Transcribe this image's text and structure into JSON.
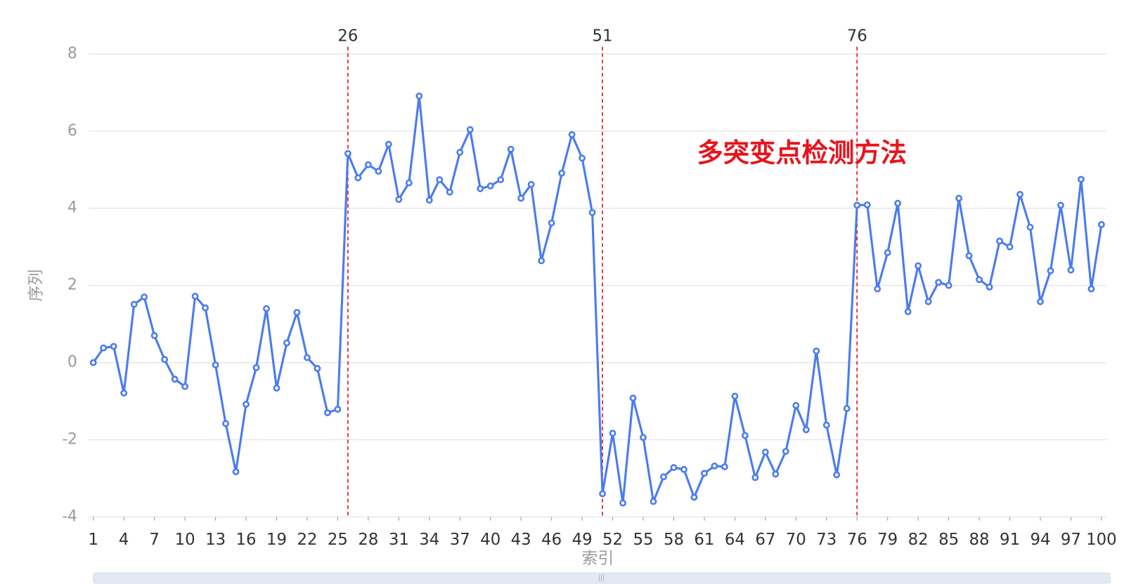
{
  "chart_data": {
    "type": "line",
    "title": "多突变点检测方法",
    "x_label": "索引",
    "y_label": "序列",
    "x": [
      1,
      2,
      3,
      4,
      5,
      6,
      7,
      8,
      9,
      10,
      11,
      12,
      13,
      14,
      15,
      16,
      17,
      18,
      19,
      20,
      21,
      22,
      23,
      24,
      25,
      26,
      27,
      28,
      29,
      30,
      31,
      32,
      33,
      34,
      35,
      36,
      37,
      38,
      39,
      40,
      41,
      42,
      43,
      44,
      45,
      46,
      47,
      48,
      49,
      50,
      51,
      52,
      53,
      54,
      55,
      56,
      57,
      58,
      59,
      60,
      61,
      62,
      63,
      64,
      65,
      66,
      67,
      68,
      69,
      70,
      71,
      72,
      73,
      74,
      75,
      76,
      77,
      78,
      79,
      80,
      81,
      82,
      83,
      84,
      85,
      86,
      87,
      88,
      89,
      90,
      91,
      92,
      93,
      94,
      95,
      96,
      97,
      98,
      99,
      100
    ],
    "series": [
      {
        "color": "#4a7bef",
        "values": [
          0,
          0.38,
          0.42,
          -0.79,
          1.51,
          1.7,
          0.7,
          0.08,
          -0.43,
          -0.62,
          1.72,
          1.42,
          -0.06,
          -1.58,
          -2.83,
          -1.08,
          -0.13,
          1.4,
          -0.66,
          0.51,
          1.3,
          0.13,
          -0.15,
          -1.3,
          -1.21,
          5.42,
          4.79,
          5.13,
          4.96,
          5.66,
          4.23,
          4.66,
          6.91,
          4.21,
          4.74,
          4.42,
          5.45,
          6.04,
          4.51,
          4.58,
          4.74,
          5.53,
          4.26,
          4.62,
          2.64,
          3.62,
          4.91,
          5.91,
          5.3,
          3.89,
          -3.4,
          -1.83,
          -3.64,
          -0.92,
          -1.94,
          -3.6,
          -2.96,
          -2.72,
          -2.77,
          -3.49,
          -2.87,
          -2.68,
          -2.7,
          -0.87,
          -1.89,
          -2.98,
          -2.32,
          -2.89,
          -2.3,
          -1.11,
          -1.74,
          0.3,
          -1.62,
          -2.91,
          -1.19,
          4.08,
          4.09,
          1.91,
          2.85,
          4.13,
          1.32,
          2.51,
          1.58,
          2.08,
          2.0,
          4.26,
          2.77,
          2.15,
          1.96,
          3.15,
          3.0,
          4.36,
          3.51,
          1.58,
          2.38,
          4.08,
          2.4,
          4.75,
          1.91,
          3.58
        ]
      }
    ],
    "change_points": [
      26,
      51,
      76
    ],
    "change_point_color": "#e8141c",
    "xlim": [
      1,
      100
    ],
    "xticks": [
      1,
      4,
      7,
      10,
      13,
      16,
      19,
      22,
      25,
      28,
      31,
      34,
      37,
      40,
      43,
      46,
      49,
      52,
      55,
      58,
      61,
      64,
      67,
      70,
      73,
      76,
      79,
      82,
      85,
      88,
      91,
      94,
      97,
      100
    ],
    "ylim": [
      -4,
      8
    ],
    "yticks": [
      -4,
      -2,
      0,
      2,
      4,
      6,
      8
    ],
    "grid": true
  }
}
